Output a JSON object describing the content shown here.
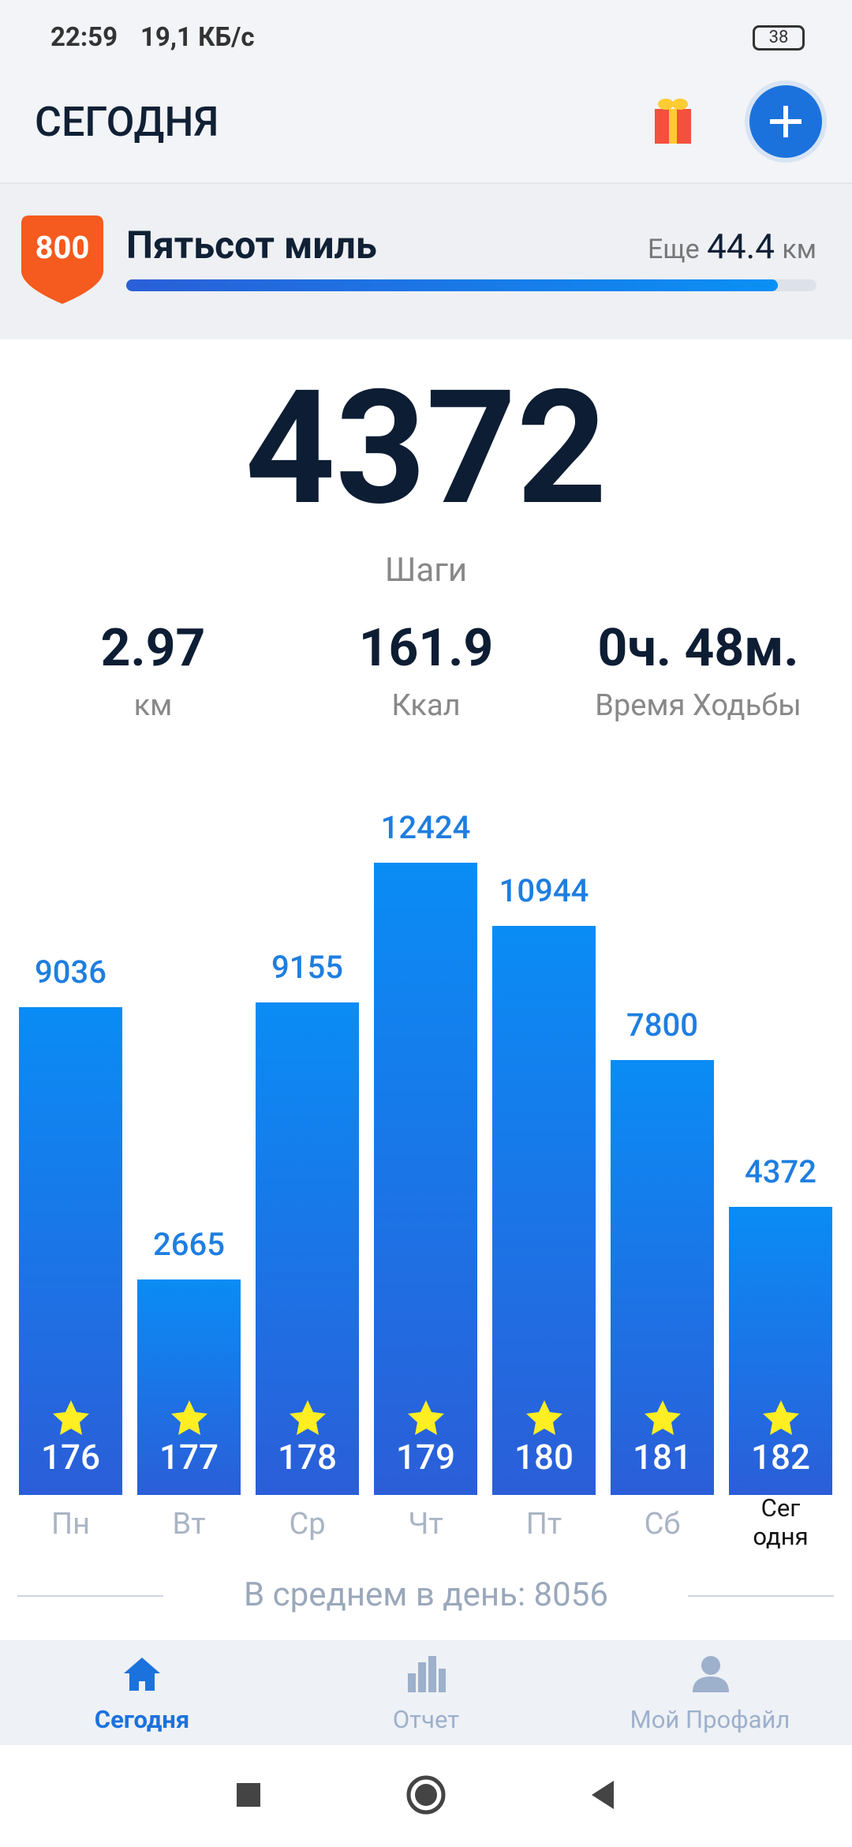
{
  "status": {
    "time": "22:59",
    "speed": "19,1 КБ/с",
    "battery": "38"
  },
  "header": {
    "title": "СЕГОДНЯ"
  },
  "goal": {
    "badge": "800",
    "title": "Пятьсот миль",
    "remaining_label": "Еще",
    "remaining": "44.4",
    "unit": "км"
  },
  "summary": {
    "steps": "4372",
    "steps_label": "Шаги",
    "stats": [
      {
        "value": "2.97",
        "label": "км"
      },
      {
        "value": "161.9",
        "label": "Ккал"
      },
      {
        "value": "0ч. 48м.",
        "label": "Время Ходьбы"
      }
    ]
  },
  "chart_data": {
    "type": "bar",
    "color": "#1e7ee0",
    "categories": [
      "Пн",
      "Вт",
      "Ср",
      "Чт",
      "Пт",
      "Сб",
      "Сег\nодня"
    ],
    "values": [
      9036,
      2665,
      9155,
      12424,
      10944,
      7800,
      4372
    ],
    "day_numbers": [
      176,
      177,
      178,
      179,
      180,
      181,
      182
    ]
  },
  "average": {
    "label": "В среднем в день: 8056"
  },
  "nav": {
    "items": [
      "Сегодня",
      "Отчет",
      "Мой Профайл"
    ]
  }
}
